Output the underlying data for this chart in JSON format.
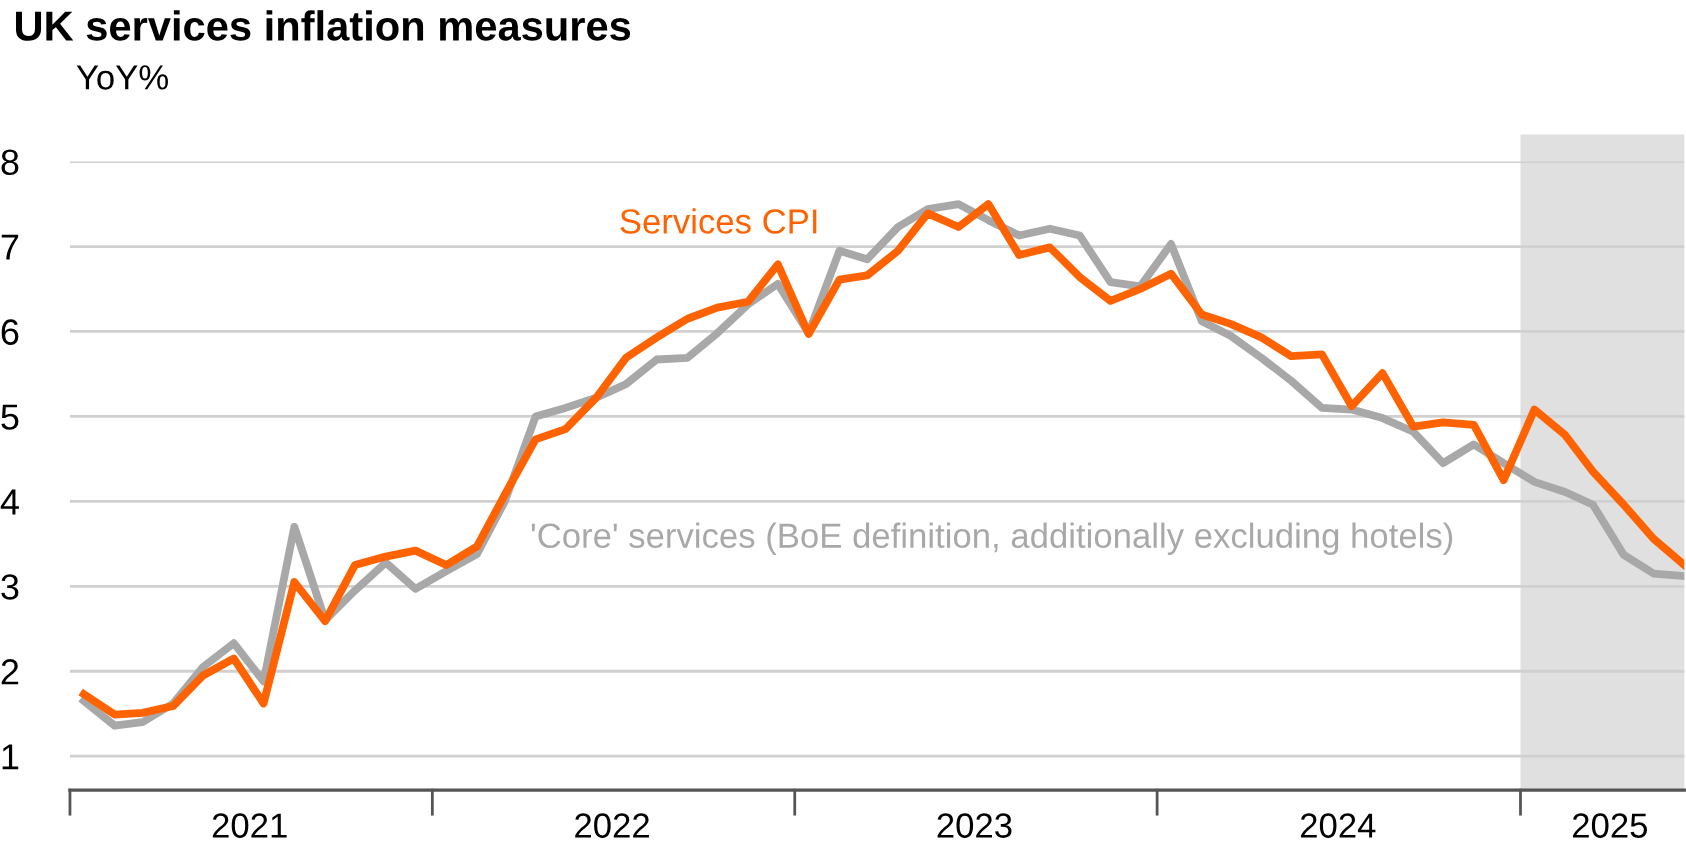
{
  "chart_data": {
    "type": "line",
    "title": "UK services inflation measures",
    "ylabel": "YoY%",
    "x": [
      "2021-01-15",
      "2021-02-15",
      "2021-03-15",
      "2021-04-15",
      "2021-05-15",
      "2021-06-15",
      "2021-07-15",
      "2021-08-15",
      "2021-09-15",
      "2021-10-15",
      "2021-11-15",
      "2021-12-15",
      "2022-01-15",
      "2022-02-15",
      "2022-03-15",
      "2022-04-15",
      "2022-05-15",
      "2022-06-15",
      "2022-07-15",
      "2022-08-15",
      "2022-09-15",
      "2022-10-15",
      "2022-11-15",
      "2022-12-15",
      "2023-01-15",
      "2023-02-15",
      "2023-03-15",
      "2023-04-15",
      "2023-05-15",
      "2023-06-15",
      "2023-07-15",
      "2023-08-15",
      "2023-09-15",
      "2023-10-15",
      "2023-11-15",
      "2023-12-15",
      "2024-01-15",
      "2024-02-15",
      "2024-03-15",
      "2024-04-15",
      "2024-05-15",
      "2024-06-15",
      "2024-07-15",
      "2024-08-15",
      "2024-09-15",
      "2024-10-15",
      "2024-11-15",
      "2024-12-15",
      "2025-01-15",
      "2025-02-15",
      "2025-03-15",
      "2025-04-15",
      "2025-05-15",
      "2025-06-15"
    ],
    "series": [
      {
        "name": "'Core' services (BoE definition, additionally excluding hotels)",
        "color": "#a8a8a8",
        "values": [
          1.65,
          1.36,
          1.4,
          1.62,
          2.05,
          2.33,
          1.88,
          3.7,
          2.6,
          2.95,
          3.28,
          2.97,
          3.18,
          3.38,
          4.0,
          5.0,
          5.1,
          5.22,
          5.38,
          5.67,
          5.69,
          5.98,
          6.32,
          6.56,
          5.98,
          6.95,
          6.85,
          7.23,
          7.44,
          7.5,
          7.31,
          7.13,
          7.21,
          7.13,
          6.58,
          6.53,
          7.03,
          6.12,
          5.95,
          5.69,
          5.42,
          5.1,
          5.08,
          4.98,
          4.82,
          4.45,
          4.67,
          4.45,
          4.23,
          4.11,
          3.96,
          3.37,
          3.15,
          3.12
        ]
      },
      {
        "name": "Services CPI",
        "color": "#ff6200",
        "values": [
          1.73,
          1.49,
          1.51,
          1.59,
          1.95,
          2.15,
          1.62,
          3.05,
          2.59,
          3.25,
          3.35,
          3.42,
          3.25,
          3.47,
          4.08,
          4.73,
          4.85,
          5.22,
          5.69,
          5.93,
          6.15,
          6.28,
          6.35,
          6.79,
          5.97,
          6.61,
          6.66,
          6.95,
          7.39,
          7.23,
          7.5,
          6.9,
          6.99,
          6.64,
          6.36,
          6.5,
          6.68,
          6.2,
          6.09,
          5.93,
          5.71,
          5.73,
          5.12,
          5.51,
          4.88,
          4.93,
          4.9,
          4.25,
          5.08,
          4.78,
          4.35,
          3.96,
          3.56,
          3.25
        ]
      }
    ],
    "xlim": [
      "2021-01-01",
      "2025-06-15"
    ],
    "xticks": [
      {
        "value": "2021-01-01",
        "label": null
      },
      {
        "value": "2021-07-01",
        "label": "2021"
      },
      {
        "value": "2022-01-01",
        "label": null
      },
      {
        "value": "2022-07-01",
        "label": "2022"
      },
      {
        "value": "2023-01-01",
        "label": null
      },
      {
        "value": "2023-07-01",
        "label": "2023"
      },
      {
        "value": "2024-01-01",
        "label": null
      },
      {
        "value": "2024-07-01",
        "label": "2024"
      },
      {
        "value": "2025-01-01",
        "label": null
      },
      {
        "value": "2025-04-01",
        "label": "2025"
      }
    ],
    "ylim": [
      0.6,
      8
    ],
    "yticks": [
      1,
      2,
      3,
      4,
      5,
      6,
      7,
      8
    ],
    "bands": [
      {
        "axis": "x",
        "from": "2025-01-01",
        "to": "2025-06-15",
        "color": "#e0e0e0"
      }
    ],
    "grid": "y",
    "legend": false,
    "marker": "none",
    "line_style": "solid"
  }
}
